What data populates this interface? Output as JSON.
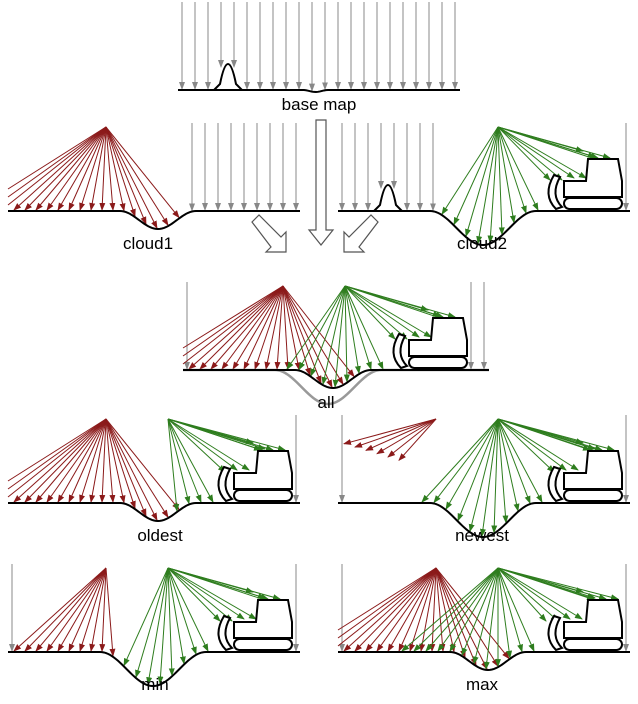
{
  "panels": [
    {
      "label": "base map"
    },
    {
      "label": "cloud1"
    },
    {
      "label": "cloud2"
    },
    {
      "label": "all"
    },
    {
      "label": "oldest"
    },
    {
      "label": "newest"
    },
    {
      "label": "min"
    },
    {
      "label": "max"
    }
  ]
}
